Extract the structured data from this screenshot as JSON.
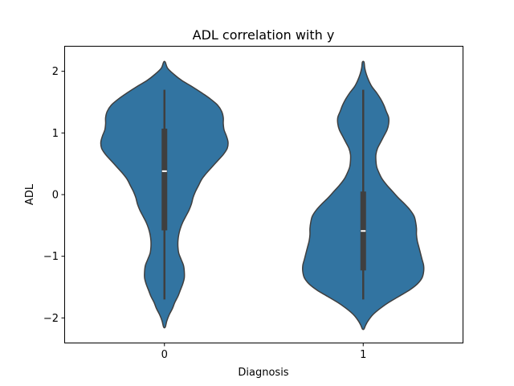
{
  "chart_data": {
    "type": "violin",
    "title": "ADL correlation with y",
    "xlabel": "Diagnosis",
    "ylabel": "ADL",
    "categories": [
      "0",
      "1"
    ],
    "ylim": [
      -2.4,
      2.4
    ],
    "yticks": [
      -2,
      -1,
      0,
      1,
      2
    ],
    "ytick_labels": [
      "−2",
      "−1",
      "0",
      "1",
      "2"
    ],
    "grid": false,
    "colors": {
      "fill": "#3274a1",
      "edge": "#3f3f3f",
      "box": "#3f3f3f",
      "median": "#ffffff"
    },
    "violins": [
      {
        "category": "0",
        "range": [
          -2.15,
          2.15
        ],
        "box": {
          "q1": -0.58,
          "median": 0.38,
          "q3": 1.07,
          "whisker_low": -1.7,
          "whisker_high": 1.7
        },
        "density": [
          [
            2.15,
            0.01
          ],
          [
            2.05,
            0.04
          ],
          [
            1.95,
            0.12
          ],
          [
            1.85,
            0.22
          ],
          [
            1.75,
            0.35
          ],
          [
            1.65,
            0.47
          ],
          [
            1.55,
            0.58
          ],
          [
            1.45,
            0.67
          ],
          [
            1.35,
            0.72
          ],
          [
            1.25,
            0.74
          ],
          [
            1.15,
            0.74
          ],
          [
            1.05,
            0.75
          ],
          [
            0.95,
            0.78
          ],
          [
            0.85,
            0.8
          ],
          [
            0.75,
            0.79
          ],
          [
            0.65,
            0.74
          ],
          [
            0.55,
            0.67
          ],
          [
            0.45,
            0.6
          ],
          [
            0.35,
            0.53
          ],
          [
            0.25,
            0.47
          ],
          [
            0.15,
            0.43
          ],
          [
            0.05,
            0.39
          ],
          [
            -0.05,
            0.36
          ],
          [
            -0.15,
            0.34
          ],
          [
            -0.25,
            0.31
          ],
          [
            -0.35,
            0.27
          ],
          [
            -0.45,
            0.23
          ],
          [
            -0.55,
            0.2
          ],
          [
            -0.65,
            0.18
          ],
          [
            -0.75,
            0.17
          ],
          [
            -0.85,
            0.17
          ],
          [
            -0.95,
            0.18
          ],
          [
            -1.05,
            0.21
          ],
          [
            -1.15,
            0.24
          ],
          [
            -1.25,
            0.25
          ],
          [
            -1.35,
            0.25
          ],
          [
            -1.45,
            0.23
          ],
          [
            -1.55,
            0.2
          ],
          [
            -1.65,
            0.17
          ],
          [
            -1.75,
            0.13
          ],
          [
            -1.85,
            0.1
          ],
          [
            -1.95,
            0.06
          ],
          [
            -2.05,
            0.03
          ],
          [
            -2.15,
            0.01
          ]
        ]
      },
      {
        "category": "1",
        "range": [
          -2.18,
          2.15
        ],
        "box": {
          "q1": -1.23,
          "median": -0.59,
          "q3": 0.05,
          "whisker_low": -1.7,
          "whisker_high": 1.7
        },
        "density": [
          [
            2.15,
            0.01
          ],
          [
            2.05,
            0.02
          ],
          [
            1.95,
            0.04
          ],
          [
            1.85,
            0.07
          ],
          [
            1.75,
            0.11
          ],
          [
            1.65,
            0.17
          ],
          [
            1.55,
            0.22
          ],
          [
            1.45,
            0.26
          ],
          [
            1.35,
            0.29
          ],
          [
            1.25,
            0.32
          ],
          [
            1.15,
            0.32
          ],
          [
            1.05,
            0.3
          ],
          [
            0.95,
            0.26
          ],
          [
            0.85,
            0.22
          ],
          [
            0.75,
            0.18
          ],
          [
            0.65,
            0.16
          ],
          [
            0.55,
            0.16
          ],
          [
            0.45,
            0.17
          ],
          [
            0.35,
            0.2
          ],
          [
            0.25,
            0.24
          ],
          [
            0.15,
            0.3
          ],
          [
            0.05,
            0.37
          ],
          [
            -0.05,
            0.44
          ],
          [
            -0.15,
            0.52
          ],
          [
            -0.25,
            0.59
          ],
          [
            -0.35,
            0.64
          ],
          [
            -0.45,
            0.66
          ],
          [
            -0.55,
            0.67
          ],
          [
            -0.65,
            0.67
          ],
          [
            -0.75,
            0.68
          ],
          [
            -0.85,
            0.7
          ],
          [
            -0.95,
            0.72
          ],
          [
            -1.05,
            0.74
          ],
          [
            -1.15,
            0.76
          ],
          [
            -1.25,
            0.76
          ],
          [
            -1.35,
            0.74
          ],
          [
            -1.45,
            0.68
          ],
          [
            -1.55,
            0.58
          ],
          [
            -1.65,
            0.45
          ],
          [
            -1.75,
            0.32
          ],
          [
            -1.85,
            0.21
          ],
          [
            -1.95,
            0.12
          ],
          [
            -2.05,
            0.06
          ],
          [
            -2.12,
            0.03
          ],
          [
            -2.18,
            0.01
          ]
        ]
      }
    ]
  }
}
